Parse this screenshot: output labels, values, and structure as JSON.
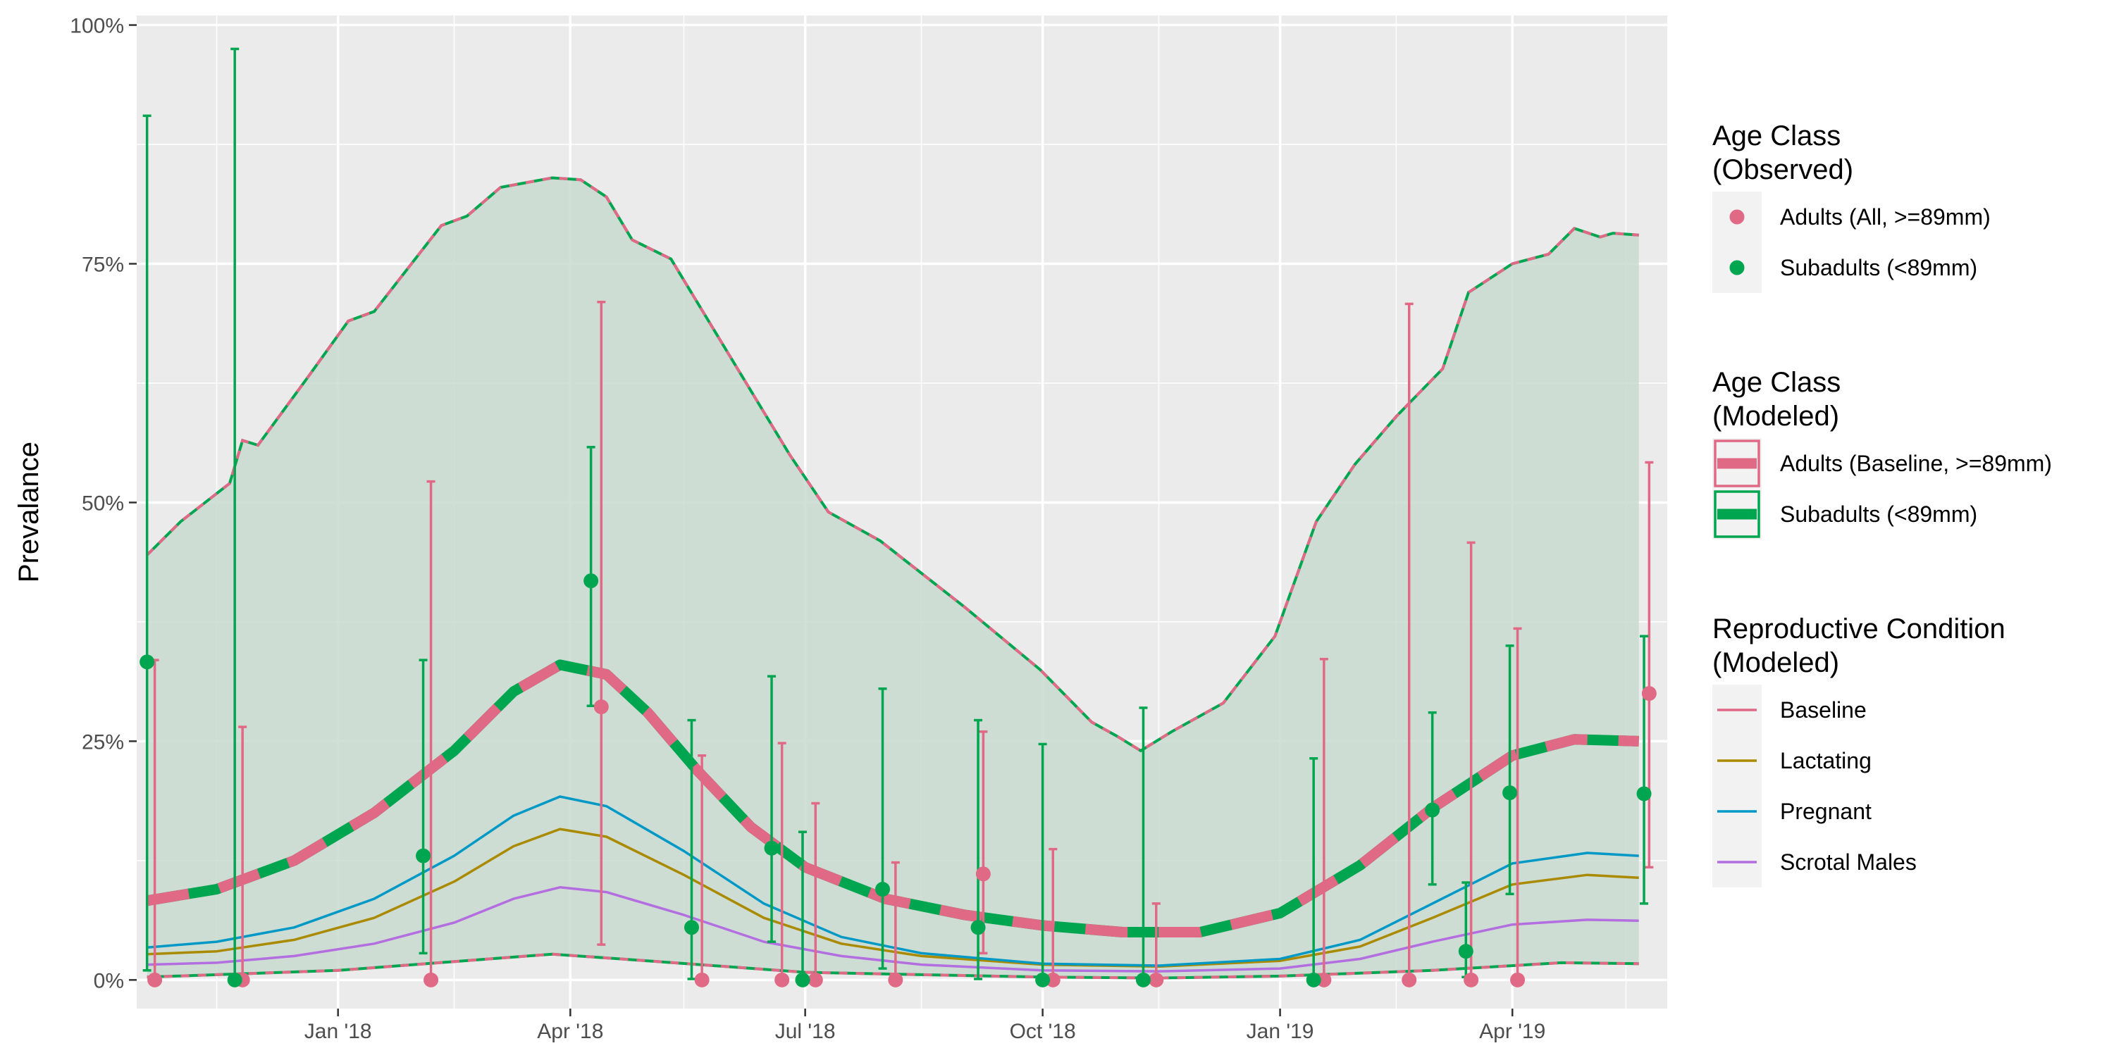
{
  "chart_data": {
    "type": "line",
    "ylabel": "Prevalance",
    "xlabel": "",
    "x_range": [
      "2017-10-15",
      "2019-05-31"
    ],
    "x_ticks": [
      {
        "date": "2018-01-01",
        "label": "Jan '18"
      },
      {
        "date": "2018-04-01",
        "label": "Apr '18"
      },
      {
        "date": "2018-07-01",
        "label": "Jul '18"
      },
      {
        "date": "2018-10-01",
        "label": "Oct '18"
      },
      {
        "date": "2019-01-01",
        "label": "Jan '19"
      },
      {
        "date": "2019-04-01",
        "label": "Apr '19"
      }
    ],
    "x_minor_breaks": [
      "2017-11-15",
      "2018-02-15",
      "2018-05-15",
      "2018-08-15",
      "2018-11-15",
      "2019-02-15",
      "2019-05-15"
    ],
    "ylim": [
      -0.03,
      1.01
    ],
    "y_ticks": [
      {
        "value": 0,
        "label": "0%"
      },
      {
        "value": 0.25,
        "label": "25%"
      },
      {
        "value": 0.5,
        "label": "50%"
      },
      {
        "value": 0.75,
        "label": "75%"
      },
      {
        "value": 1.0,
        "label": "100%"
      }
    ],
    "grid": true,
    "legend_position": "right",
    "colors": {
      "adults": "#e06986",
      "subadults": "#00a550",
      "baseline": "#e06986",
      "lactating": "#a98a00",
      "pregnant": "#0099c6",
      "scrotal": "#b36ee0",
      "ribbon": "#c9dbd0",
      "panel": "#ebebeb"
    },
    "ribbon": {
      "upper": [
        [
          "2017-10-19",
          0.445
        ],
        [
          "2017-11-01",
          0.48
        ],
        [
          "2017-11-20",
          0.52
        ],
        [
          "2017-11-25",
          0.565
        ],
        [
          "2017-12-01",
          0.56
        ],
        [
          "2017-12-20",
          0.63
        ],
        [
          "2018-01-05",
          0.69
        ],
        [
          "2018-01-15",
          0.7
        ],
        [
          "2018-02-10",
          0.79
        ],
        [
          "2018-02-20",
          0.8
        ],
        [
          "2018-03-05",
          0.83
        ],
        [
          "2018-03-25",
          0.84
        ],
        [
          "2018-04-05",
          0.838
        ],
        [
          "2018-04-15",
          0.82
        ],
        [
          "2018-04-25",
          0.775
        ],
        [
          "2018-05-10",
          0.755
        ],
        [
          "2018-06-25",
          0.55
        ],
        [
          "2018-07-10",
          0.49
        ],
        [
          "2018-07-30",
          0.46
        ],
        [
          "2018-09-01",
          0.39
        ],
        [
          "2018-09-30",
          0.325
        ],
        [
          "2018-10-20",
          0.27
        ],
        [
          "2018-10-30",
          0.255
        ],
        [
          "2018-11-08",
          0.24
        ],
        [
          "2018-11-20",
          0.26
        ],
        [
          "2018-12-10",
          0.29
        ],
        [
          "2018-12-30",
          0.36
        ],
        [
          "2019-01-15",
          0.48
        ],
        [
          "2019-01-30",
          0.54
        ],
        [
          "2019-02-15",
          0.59
        ],
        [
          "2019-03-05",
          0.64
        ],
        [
          "2019-03-15",
          0.72
        ],
        [
          "2019-04-01",
          0.75
        ],
        [
          "2019-04-15",
          0.76
        ],
        [
          "2019-04-25",
          0.787
        ],
        [
          "2019-05-05",
          0.778
        ],
        [
          "2019-05-10",
          0.782
        ],
        [
          "2019-05-20",
          0.78
        ]
      ],
      "lower": [
        [
          "2017-10-19",
          0.003
        ],
        [
          "2018-01-01",
          0.01
        ],
        [
          "2018-03-25",
          0.027
        ],
        [
          "2018-05-01",
          0.02
        ],
        [
          "2018-07-01",
          0.008
        ],
        [
          "2018-10-01",
          0.003
        ],
        [
          "2018-11-15",
          0.002
        ],
        [
          "2019-01-01",
          0.004
        ],
        [
          "2019-03-01",
          0.01
        ],
        [
          "2019-04-20",
          0.018
        ],
        [
          "2019-05-20",
          0.017
        ]
      ]
    },
    "series": [
      {
        "name": "Adults (Baseline, >=89mm)",
        "style": "thick-dashed",
        "points": [
          [
            "2017-10-19",
            0.083
          ],
          [
            "2017-11-15",
            0.095
          ],
          [
            "2017-12-15",
            0.125
          ],
          [
            "2018-01-15",
            0.175
          ],
          [
            "2018-02-15",
            0.24
          ],
          [
            "2018-03-10",
            0.302
          ],
          [
            "2018-03-28",
            0.33
          ],
          [
            "2018-04-15",
            0.32
          ],
          [
            "2018-05-01",
            0.28
          ],
          [
            "2018-05-20",
            0.22
          ],
          [
            "2018-06-10",
            0.16
          ],
          [
            "2018-07-01",
            0.118
          ],
          [
            "2018-08-01",
            0.085
          ],
          [
            "2018-09-01",
            0.068
          ],
          [
            "2018-10-01",
            0.057
          ],
          [
            "2018-11-01",
            0.05
          ],
          [
            "2018-12-01",
            0.05
          ],
          [
            "2019-01-01",
            0.07
          ],
          [
            "2019-02-01",
            0.12
          ],
          [
            "2019-03-01",
            0.18
          ],
          [
            "2019-04-01",
            0.235
          ],
          [
            "2019-04-25",
            0.252
          ],
          [
            "2019-05-20",
            0.25
          ]
        ]
      },
      {
        "name": "Lactating",
        "style": "thin",
        "points": [
          [
            "2017-10-19",
            0.027
          ],
          [
            "2017-11-15",
            0.03
          ],
          [
            "2017-12-15",
            0.042
          ],
          [
            "2018-01-15",
            0.065
          ],
          [
            "2018-02-15",
            0.103
          ],
          [
            "2018-03-10",
            0.14
          ],
          [
            "2018-03-28",
            0.158
          ],
          [
            "2018-04-15",
            0.15
          ],
          [
            "2018-05-15",
            0.11
          ],
          [
            "2018-06-15",
            0.065
          ],
          [
            "2018-07-15",
            0.038
          ],
          [
            "2018-08-15",
            0.025
          ],
          [
            "2018-10-01",
            0.016
          ],
          [
            "2018-11-15",
            0.014
          ],
          [
            "2019-01-01",
            0.02
          ],
          [
            "2019-02-01",
            0.035
          ],
          [
            "2019-03-01",
            0.065
          ],
          [
            "2019-04-01",
            0.1
          ],
          [
            "2019-04-30",
            0.11
          ],
          [
            "2019-05-20",
            0.107
          ]
        ]
      },
      {
        "name": "Pregnant",
        "style": "thin",
        "points": [
          [
            "2017-10-19",
            0.034
          ],
          [
            "2017-11-15",
            0.04
          ],
          [
            "2017-12-15",
            0.055
          ],
          [
            "2018-01-15",
            0.085
          ],
          [
            "2018-02-15",
            0.13
          ],
          [
            "2018-03-10",
            0.172
          ],
          [
            "2018-03-28",
            0.192
          ],
          [
            "2018-04-15",
            0.182
          ],
          [
            "2018-05-15",
            0.135
          ],
          [
            "2018-06-15",
            0.08
          ],
          [
            "2018-07-15",
            0.045
          ],
          [
            "2018-08-15",
            0.028
          ],
          [
            "2018-10-01",
            0.017
          ],
          [
            "2018-11-15",
            0.015
          ],
          [
            "2019-01-01",
            0.022
          ],
          [
            "2019-02-01",
            0.042
          ],
          [
            "2019-03-01",
            0.08
          ],
          [
            "2019-04-01",
            0.122
          ],
          [
            "2019-04-30",
            0.133
          ],
          [
            "2019-05-20",
            0.13
          ]
        ]
      },
      {
        "name": "Scrotal Males",
        "style": "thin",
        "points": [
          [
            "2017-10-19",
            0.016
          ],
          [
            "2017-11-15",
            0.018
          ],
          [
            "2017-12-15",
            0.025
          ],
          [
            "2018-01-15",
            0.038
          ],
          [
            "2018-02-15",
            0.06
          ],
          [
            "2018-03-10",
            0.085
          ],
          [
            "2018-03-28",
            0.097
          ],
          [
            "2018-04-15",
            0.092
          ],
          [
            "2018-05-15",
            0.068
          ],
          [
            "2018-06-15",
            0.04
          ],
          [
            "2018-07-15",
            0.025
          ],
          [
            "2018-08-15",
            0.016
          ],
          [
            "2018-10-01",
            0.01
          ],
          [
            "2018-11-15",
            0.009
          ],
          [
            "2019-01-01",
            0.012
          ],
          [
            "2019-02-01",
            0.022
          ],
          [
            "2019-03-01",
            0.04
          ],
          [
            "2019-04-01",
            0.058
          ],
          [
            "2019-04-30",
            0.063
          ],
          [
            "2019-05-20",
            0.062
          ]
        ]
      }
    ],
    "observed": {
      "adults": [
        {
          "date": "2017-10-22",
          "value": 0.0,
          "lo": 0.0,
          "hi": 0.335
        },
        {
          "date": "2017-11-25",
          "value": 0.0,
          "lo": 0.0,
          "hi": 0.265
        },
        {
          "date": "2018-02-06",
          "value": 0.0,
          "lo": 0.0,
          "hi": 0.522
        },
        {
          "date": "2018-04-13",
          "value": 0.286,
          "lo": 0.037,
          "hi": 0.71
        },
        {
          "date": "2018-05-22",
          "value": 0.0,
          "lo": 0.0,
          "hi": 0.235
        },
        {
          "date": "2018-06-22",
          "value": 0.0,
          "lo": 0.0,
          "hi": 0.248
        },
        {
          "date": "2018-07-05",
          "value": 0.0,
          "lo": 0.0,
          "hi": 0.185
        },
        {
          "date": "2018-08-05",
          "value": 0.0,
          "lo": 0.0,
          "hi": 0.123
        },
        {
          "date": "2018-09-08",
          "value": 0.111,
          "lo": 0.028,
          "hi": 0.26
        },
        {
          "date": "2018-10-05",
          "value": 0.0,
          "lo": 0.0,
          "hi": 0.137
        },
        {
          "date": "2018-11-14",
          "value": 0.0,
          "lo": 0.0,
          "hi": 0.08
        },
        {
          "date": "2019-01-18",
          "value": 0.0,
          "lo": 0.0,
          "hi": 0.336
        },
        {
          "date": "2019-02-20",
          "value": 0.0,
          "lo": 0.0,
          "hi": 0.708
        },
        {
          "date": "2019-03-16",
          "value": 0.0,
          "lo": 0.0,
          "hi": 0.458
        },
        {
          "date": "2019-04-03",
          "value": 0.0,
          "lo": 0.0,
          "hi": 0.368
        },
        {
          "date": "2019-05-24",
          "value": 0.3,
          "lo": 0.118,
          "hi": 0.542
        }
      ],
      "subadults": [
        {
          "date": "2017-10-19",
          "value": 0.333,
          "lo": 0.01,
          "hi": 0.905
        },
        {
          "date": "2017-11-22",
          "value": 0.0,
          "lo": 0.0,
          "hi": 0.975
        },
        {
          "date": "2018-02-03",
          "value": 0.13,
          "lo": 0.028,
          "hi": 0.335
        },
        {
          "date": "2018-04-09",
          "value": 0.418,
          "lo": 0.287,
          "hi": 0.558
        },
        {
          "date": "2018-05-18",
          "value": 0.055,
          "lo": 0.001,
          "hi": 0.272
        },
        {
          "date": "2018-06-18",
          "value": 0.138,
          "lo": 0.04,
          "hi": 0.318
        },
        {
          "date": "2018-06-30",
          "value": 0.0,
          "lo": 0.0,
          "hi": 0.155
        },
        {
          "date": "2018-07-31",
          "value": 0.095,
          "lo": 0.012,
          "hi": 0.305
        },
        {
          "date": "2018-09-06",
          "value": 0.055,
          "lo": 0.001,
          "hi": 0.272
        },
        {
          "date": "2018-10-01",
          "value": 0.0,
          "lo": 0.0,
          "hi": 0.247
        },
        {
          "date": "2018-11-09",
          "value": 0.0,
          "lo": 0.0,
          "hi": 0.285
        },
        {
          "date": "2019-01-14",
          "value": 0.0,
          "lo": 0.0,
          "hi": 0.232
        },
        {
          "date": "2019-03-01",
          "value": 0.178,
          "lo": 0.1,
          "hi": 0.28
        },
        {
          "date": "2019-03-14",
          "value": 0.03,
          "lo": 0.003,
          "hi": 0.102
        },
        {
          "date": "2019-03-31",
          "value": 0.196,
          "lo": 0.09,
          "hi": 0.35
        },
        {
          "date": "2019-05-22",
          "value": 0.195,
          "lo": 0.08,
          "hi": 0.36
        }
      ]
    },
    "legends": [
      {
        "title": [
          "Age Class",
          "(Observed)"
        ],
        "kind": "point",
        "entries": [
          {
            "label": "Adults (All, >=89mm)",
            "color": "#e06986"
          },
          {
            "label": "Subadults (<89mm)",
            "color": "#00a550"
          }
        ]
      },
      {
        "title": [
          "Age Class",
          "(Modeled)"
        ],
        "kind": "boxed-line",
        "entries": [
          {
            "label": "Adults (Baseline, >=89mm)",
            "color": "#e06986"
          },
          {
            "label": "Subadults (<89mm)",
            "color": "#00a550"
          }
        ]
      },
      {
        "title": [
          "Reproductive Condition",
          "(Modeled)"
        ],
        "kind": "line",
        "entries": [
          {
            "label": "Baseline",
            "color": "#e06986"
          },
          {
            "label": "Lactating",
            "color": "#a98a00"
          },
          {
            "label": "Pregnant",
            "color": "#0099c6"
          },
          {
            "label": "Scrotal Males",
            "color": "#b36ee0"
          }
        ]
      }
    ]
  }
}
